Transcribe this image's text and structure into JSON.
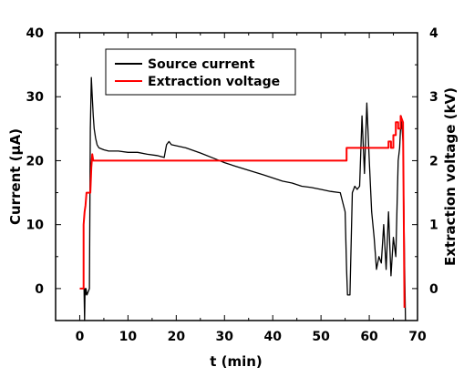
{
  "chart_data": {
    "type": "line",
    "xlabel": "t  (min)",
    "ylabel": "Current  (μA)",
    "y2label": "Extraction voltage  (kV)",
    "xlim": [
      -5,
      70
    ],
    "ylim": [
      -5,
      40
    ],
    "y2lim": [
      -0.5,
      4
    ],
    "xticks": [
      0,
      10,
      20,
      30,
      40,
      50,
      60,
      70
    ],
    "yticks": [
      0,
      10,
      20,
      30,
      40
    ],
    "y2ticks": [
      0,
      1,
      2,
      3,
      4
    ],
    "grid": false,
    "legend_position": "top-left",
    "series": [
      {
        "name": "Source current",
        "color": "#000000",
        "axis": "left",
        "x": [
          0.0,
          0.9,
          1.0,
          1.1,
          1.2,
          1.3,
          1.5,
          2.0,
          2.2,
          2.4,
          2.6,
          2.8,
          3.0,
          3.3,
          3.6,
          4.0,
          5.0,
          6.0,
          8.0,
          10.0,
          12.0,
          14.0,
          16.0,
          17.5,
          18.0,
          18.5,
          19.0,
          22.0,
          25.0,
          28.0,
          30.0,
          32.0,
          35.0,
          38.0,
          40.0,
          42.0,
          44.0,
          46.0,
          48.0,
          50.0,
          52.0,
          54.0,
          55.0,
          55.3,
          55.5,
          56.0,
          56.5,
          57.0,
          57.5,
          58.0,
          58.5,
          59.0,
          59.5,
          60.0,
          60.5,
          61.0,
          61.5,
          62.0,
          62.5,
          63.0,
          63.5,
          64.0,
          64.5,
          65.0,
          65.5,
          66.0,
          66.3,
          66.6,
          67.0,
          67.3,
          67.5
        ],
        "y": [
          0.0,
          0.0,
          -5.0,
          0.0,
          -1.0,
          0.0,
          -1.0,
          0.0,
          25.0,
          33.0,
          30.0,
          27.0,
          25.0,
          23.5,
          22.5,
          22.0,
          21.7,
          21.5,
          21.5,
          21.3,
          21.3,
          21.0,
          20.8,
          20.5,
          22.5,
          23.0,
          22.5,
          22.0,
          21.2,
          20.3,
          19.7,
          19.2,
          18.5,
          17.8,
          17.3,
          16.8,
          16.5,
          16.0,
          15.8,
          15.5,
          15.2,
          15.0,
          12.0,
          3.0,
          -1.0,
          -1.0,
          15.0,
          16.0,
          15.5,
          16.0,
          27.0,
          18.0,
          29.0,
          20.0,
          12.0,
          8.0,
          3.0,
          5.0,
          4.0,
          10.0,
          3.0,
          12.0,
          2.0,
          8.0,
          5.0,
          20.0,
          22.0,
          27.0,
          23.0,
          5.0,
          -5.0
        ]
      },
      {
        "name": "Extraction voltage",
        "color": "#ff0000",
        "axis": "right",
        "x": [
          0.0,
          0.8,
          0.8,
          1.0,
          1.2,
          1.4,
          1.6,
          1.8,
          2.0,
          2.2,
          2.4,
          2.6,
          2.8,
          3.0,
          3.5,
          10.0,
          20.0,
          30.0,
          40.0,
          50.0,
          55.3,
          55.3,
          59.0,
          59.0,
          63.5,
          63.5,
          64.0,
          64.0,
          64.5,
          64.5,
          65.0,
          65.0,
          65.5,
          65.5,
          66.0,
          66.0,
          66.5,
          66.5,
          67.0,
          67.3
        ],
        "y": [
          0.0,
          0.0,
          1.0,
          1.2,
          1.3,
          1.5,
          1.5,
          1.5,
          1.5,
          1.5,
          1.9,
          2.1,
          2.0,
          2.0,
          2.0,
          2.0,
          2.0,
          2.0,
          2.0,
          2.0,
          2.0,
          2.2,
          2.2,
          2.2,
          2.2,
          2.2,
          2.2,
          2.3,
          2.3,
          2.2,
          2.2,
          2.4,
          2.4,
          2.6,
          2.6,
          2.5,
          2.5,
          2.7,
          2.6,
          -0.3
        ]
      }
    ]
  }
}
